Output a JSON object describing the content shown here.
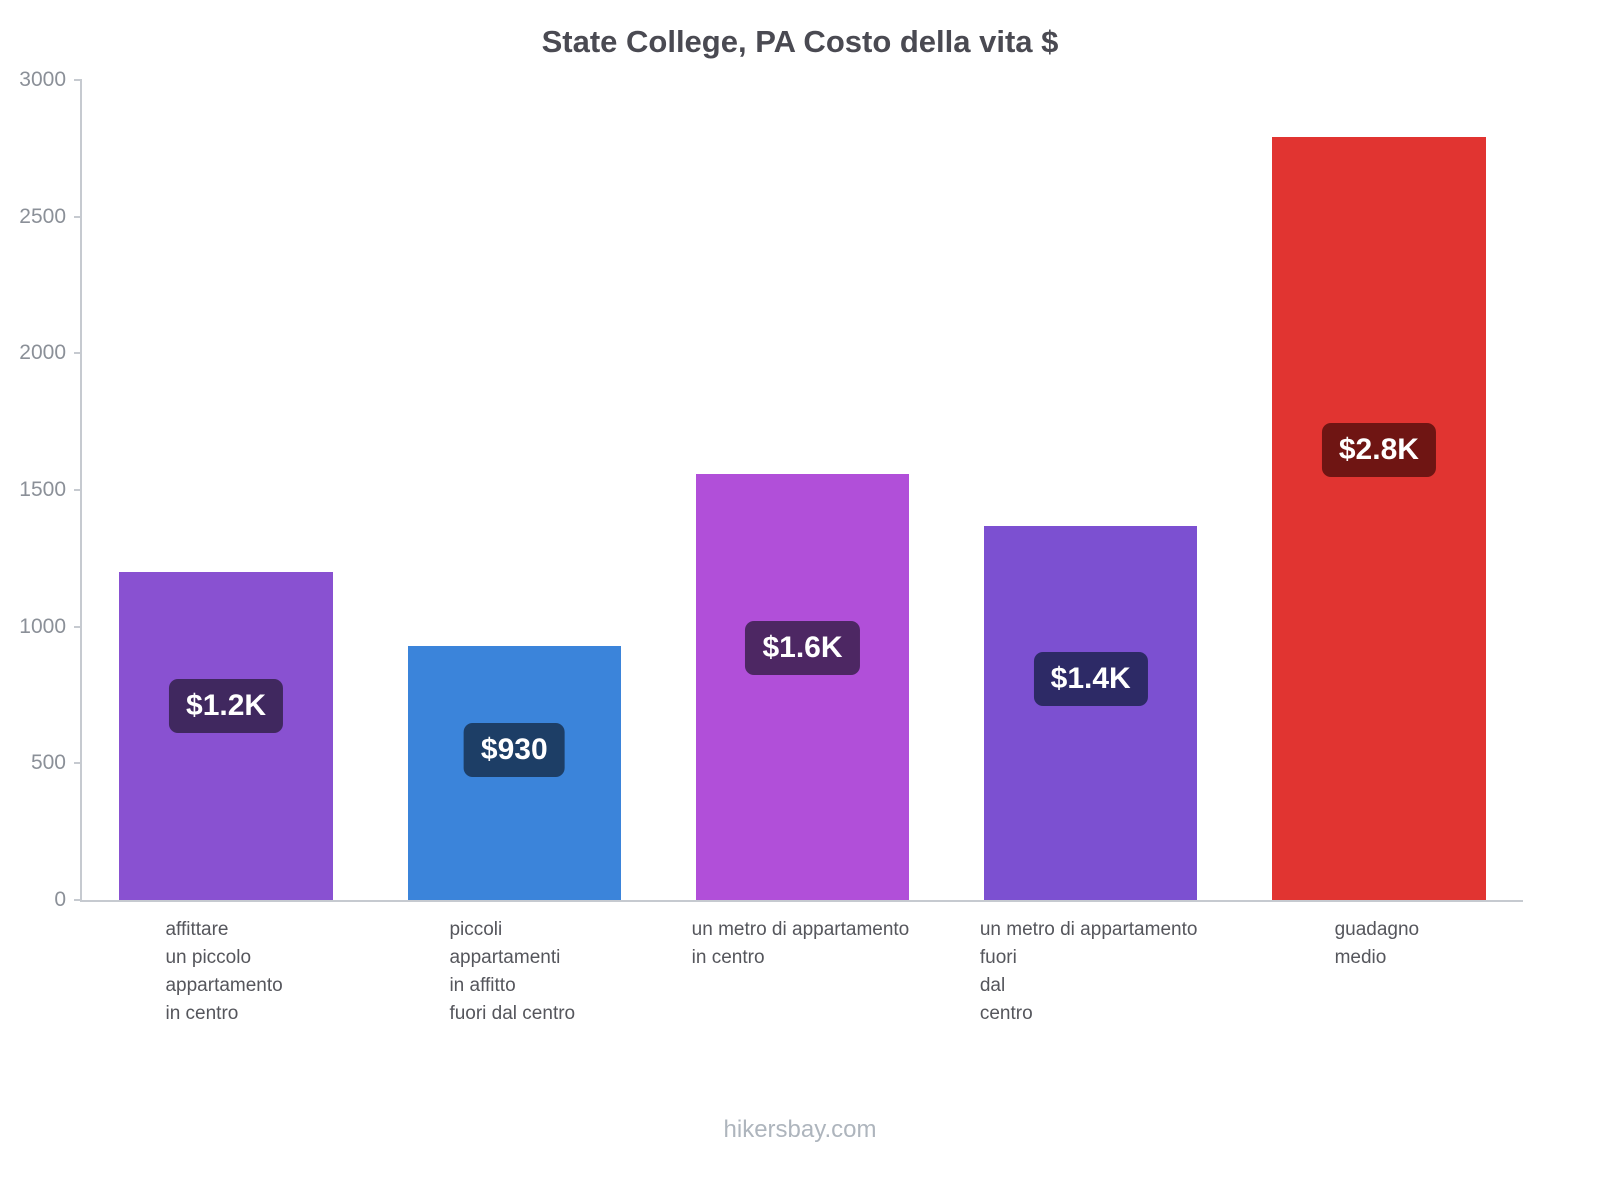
{
  "page": {
    "footer": "hikersbay.com"
  },
  "chart_data": {
    "type": "bar",
    "title": "State College, PA Costo della vita $",
    "xlabel": "",
    "ylabel": "",
    "ylim": [
      0,
      3000
    ],
    "yticks": [
      0,
      500,
      1000,
      1500,
      2000,
      2500,
      3000
    ],
    "grid": false,
    "legend": false,
    "categories": [
      "affittare un piccolo appartamento in centro",
      "piccoli appartamenti in affitto fuori dal centro",
      "un metro di appartamento in centro",
      "un metro di appartamento fuori dal centro",
      "guadagno medio"
    ],
    "category_lines": [
      [
        "affittare",
        "un piccolo",
        "appartamento",
        "in centro"
      ],
      [
        "piccoli",
        "appartamenti",
        "in affitto",
        "fuori dal centro"
      ],
      [
        "un metro di appartamento",
        "in centro"
      ],
      [
        "un metro di appartamento",
        "fuori",
        "dal",
        "centro"
      ],
      [
        "guadagno",
        "medio"
      ]
    ],
    "values": [
      1200,
      930,
      1560,
      1370,
      2790
    ],
    "value_labels": [
      "$1.2K",
      "$930",
      "$1.6K",
      "$1.4K",
      "$2.8K"
    ],
    "bar_colors": [
      "#8951d1",
      "#3b84da",
      "#b14fd9",
      "#7c50d1",
      "#e13431"
    ],
    "value_label_bg": [
      "#40285f",
      "#1d3e66",
      "#4d2763",
      "#2d2a66",
      "#6f1513"
    ]
  }
}
